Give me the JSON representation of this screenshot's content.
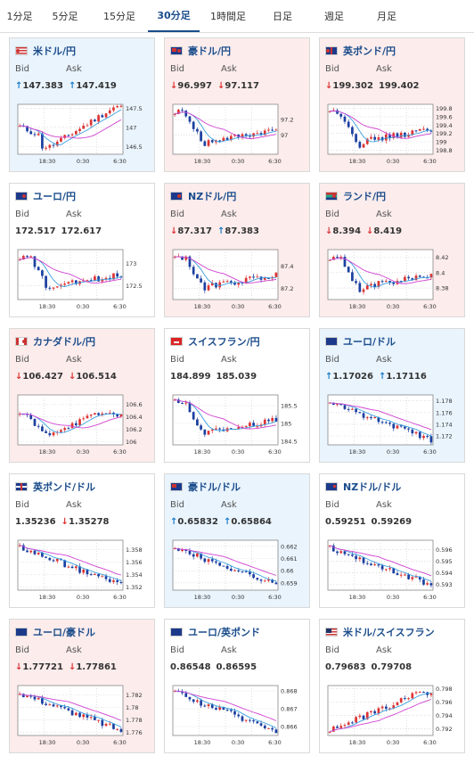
{
  "tabs": [
    "1分足",
    "5分足",
    "15分足",
    "30分足",
    "1時間足",
    "日足",
    "週足",
    "月足"
  ],
  "active_tab": "30分足",
  "labels": {
    "bid": "Bid",
    "ask": "Ask"
  },
  "colors": {
    "up_bg": "#e9f4fd",
    "down_bg": "#fcecec",
    "candle_up": "#d33",
    "candle_down": "#1a3fa0",
    "ma_short": "#3aa0e0",
    "ma_long": "#d040d0",
    "link": "#1a4c8b"
  },
  "x_ticks": [
    "18:30",
    "0:30",
    "6:30"
  ],
  "pairs": [
    {
      "name": "米ドル/円",
      "flag": "us",
      "trend": "up",
      "bid": "147.383",
      "ask": "147.419",
      "bid_dir": "up",
      "ask_dir": "up",
      "y_ticks": [
        "147.5",
        "147",
        "146.5"
      ],
      "range": [
        146.3,
        147.6
      ],
      "shape": "vrecover_high"
    },
    {
      "name": "豪ドル/円",
      "flag": "au",
      "trend": "down",
      "bid": "96.997",
      "ask": "97.117",
      "bid_dir": "down",
      "ask_dir": "down",
      "y_ticks": [
        "97.2",
        "97"
      ],
      "range": [
        96.75,
        97.4
      ],
      "shape": "dip_flat"
    },
    {
      "name": "英ポンド/円",
      "flag": "gb",
      "trend": "down",
      "bid": "199.302",
      "ask": "199.402",
      "bid_dir": "down",
      "ask_dir": "",
      "y_ticks": [
        "199.8",
        "199.6",
        "199.4",
        "199.2",
        "199",
        "198.8"
      ],
      "range": [
        198.7,
        199.9
      ],
      "shape": "dip_flat"
    },
    {
      "name": "ユーロ/円",
      "flag": "eu",
      "trend": "flat",
      "bid": "172.517",
      "ask": "172.617",
      "bid_dir": "",
      "ask_dir": "",
      "y_ticks": [
        "173",
        "172.5"
      ],
      "range": [
        172.2,
        173.3
      ],
      "shape": "dip_flat"
    },
    {
      "name": "NZドル/円",
      "flag": "nz",
      "trend": "down",
      "bid": "87.317",
      "ask": "87.383",
      "bid_dir": "down",
      "ask_dir": "up",
      "y_ticks": [
        "87.4",
        "87.2"
      ],
      "range": [
        87.1,
        87.55
      ],
      "shape": "dip_flat"
    },
    {
      "name": "ランド/円",
      "flag": "za",
      "trend": "down",
      "bid": "8.394",
      "ask": "8.419",
      "bid_dir": "down",
      "ask_dir": "down",
      "y_ticks": [
        "8.42",
        "8.4",
        "8.38"
      ],
      "range": [
        8.365,
        8.43
      ],
      "shape": "dip_flat"
    },
    {
      "name": "カナダドル/円",
      "flag": "ca",
      "trend": "down",
      "bid": "106.427",
      "ask": "106.514",
      "bid_dir": "down",
      "ask_dir": "down",
      "y_ticks": [
        "106.6",
        "106.4",
        "106.2",
        "106"
      ],
      "range": [
        105.95,
        106.75
      ],
      "shape": "vrecover"
    },
    {
      "name": "スイスフラン/円",
      "flag": "ch",
      "trend": "flat",
      "bid": "184.899",
      "ask": "185.039",
      "bid_dir": "",
      "ask_dir": "",
      "y_ticks": [
        "185.5",
        "185",
        "184.5"
      ],
      "range": [
        184.4,
        185.8
      ],
      "shape": "dip_flat"
    },
    {
      "name": "ユーロ/ドル",
      "flag": "eu",
      "trend": "up",
      "bid": "1.17026",
      "ask": "1.17116",
      "bid_dir": "up",
      "ask_dir": "up",
      "y_ticks": [
        "1.178",
        "1.176",
        "1.174",
        "1.172"
      ],
      "range": [
        1.1705,
        1.179
      ],
      "shape": "decline"
    },
    {
      "name": "英ポンド/ドル",
      "flag": "gb",
      "trend": "flat",
      "bid": "1.35236",
      "ask": "1.35278",
      "bid_dir": "",
      "ask_dir": "down",
      "y_ticks": [
        "1.358",
        "1.356",
        "1.354",
        "1.352"
      ],
      "range": [
        1.3515,
        1.3595
      ],
      "shape": "decline"
    },
    {
      "name": "豪ドル/ドル",
      "flag": "au",
      "trend": "up",
      "bid": "0.65832",
      "ask": "0.65864",
      "bid_dir": "up",
      "ask_dir": "up",
      "y_ticks": [
        "0.662",
        "0.661",
        "0.66",
        "0.659"
      ],
      "range": [
        0.6584,
        0.6625
      ],
      "shape": "decline"
    },
    {
      "name": "NZドル/ドル",
      "flag": "nz",
      "trend": "flat",
      "bid": "0.59251",
      "ask": "0.59269",
      "bid_dir": "",
      "ask_dir": "",
      "y_ticks": [
        "0.596",
        "0.595",
        "0.594",
        "0.593"
      ],
      "range": [
        0.5925,
        0.5968
      ],
      "shape": "decline"
    },
    {
      "name": "ユーロ/豪ドル",
      "flag": "eu",
      "trend": "down",
      "bid": "1.77721",
      "ask": "1.77861",
      "bid_dir": "down",
      "ask_dir": "down",
      "y_ticks": [
        "1.782",
        "1.78",
        "1.778",
        "1.776"
      ],
      "range": [
        1.7755,
        1.7835
      ],
      "shape": "decline"
    },
    {
      "name": "ユーロ/英ポンド",
      "flag": "eu",
      "trend": "flat",
      "bid": "0.86548",
      "ask": "0.86595",
      "bid_dir": "",
      "ask_dir": "",
      "y_ticks": [
        "0.868",
        "0.867",
        "0.866"
      ],
      "range": [
        0.8655,
        0.8683
      ],
      "shape": "decline"
    },
    {
      "name": "米ドル/スイスフラン",
      "flag": "us",
      "trend": "flat",
      "bid": "0.79683",
      "ask": "0.79708",
      "bid_dir": "",
      "ask_dir": "",
      "y_ticks": [
        "0.798",
        "0.796",
        "0.794",
        "0.792"
      ],
      "range": [
        0.791,
        0.7985
      ],
      "shape": "rise"
    }
  ]
}
